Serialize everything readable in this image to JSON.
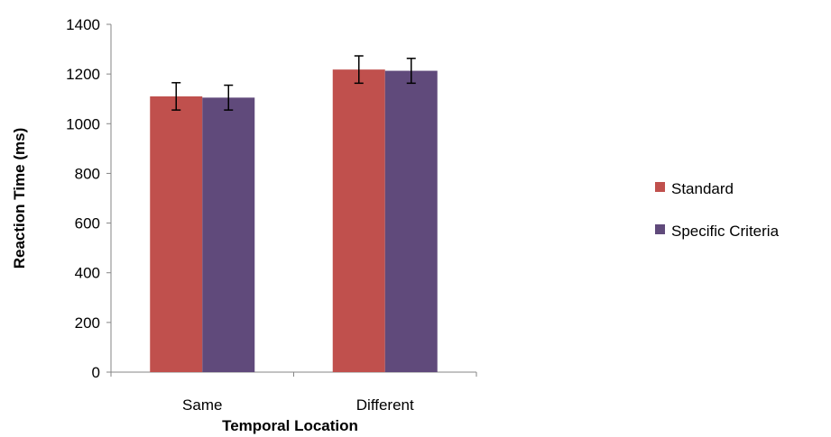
{
  "chart_data": {
    "type": "bar",
    "title": "",
    "xlabel": "Temporal Location",
    "ylabel": "Reaction Time (ms)",
    "categories": [
      "Same",
      "Different"
    ],
    "ylim": [
      0,
      1400
    ],
    "yticks": [
      0,
      200,
      400,
      600,
      800,
      1000,
      1200,
      1400
    ],
    "grid": false,
    "legend_position": "right",
    "series": [
      {
        "name": "Standard",
        "color": "#C0504D",
        "values": [
          1110,
          1218
        ],
        "error": [
          55,
          55
        ]
      },
      {
        "name": "Specific Criteria",
        "color": "#604A7B",
        "values": [
          1105,
          1213
        ],
        "error": [
          50,
          50
        ]
      }
    ]
  }
}
